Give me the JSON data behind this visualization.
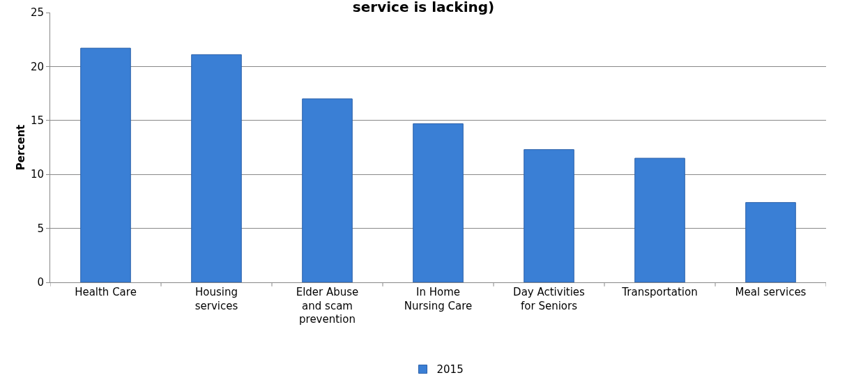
{
  "chart_data": {
    "type": "bar",
    "title": "service is lacking)",
    "ylabel": "Percent",
    "categories": [
      "Health Care",
      "Housing services",
      "Elder Abuse and scam prevention",
      "In Home Nursing Care",
      "Day Activities for Seniors",
      "Transportation",
      "Meal services"
    ],
    "series": [
      {
        "name": "2015",
        "color": "#3a7fd5",
        "values": [
          21.7,
          21.1,
          17.0,
          14.7,
          12.3,
          11.5,
          7.4
        ]
      }
    ],
    "ylim": [
      0,
      25
    ],
    "yticks": [
      0,
      5,
      10,
      15,
      20,
      25
    ],
    "grid": "y",
    "legend": "bottom"
  }
}
